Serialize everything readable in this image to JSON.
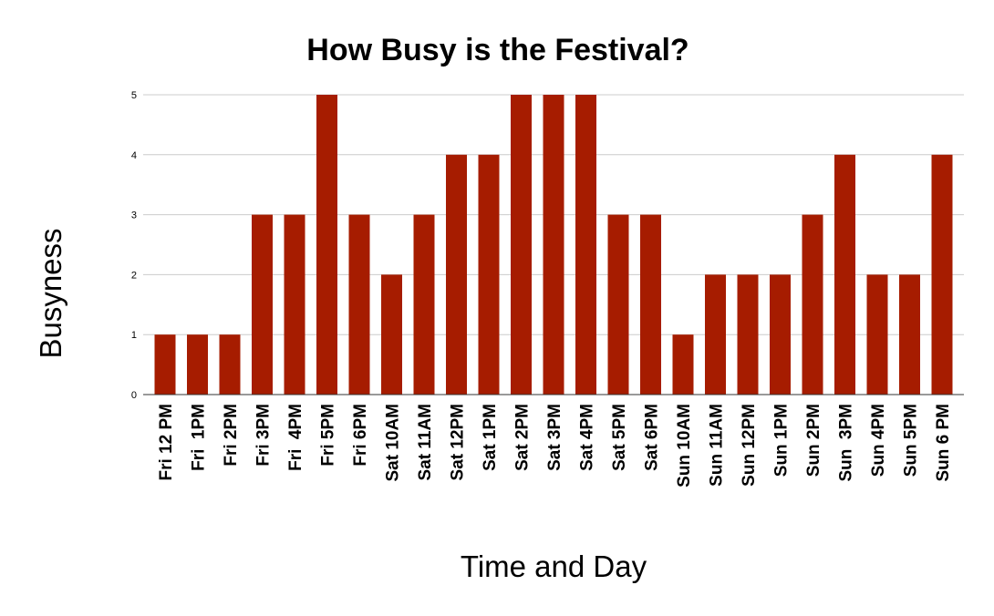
{
  "colors": {
    "bar": "#a61c00",
    "grid": "#cccccc",
    "baseline": "#333333",
    "background": "#ffffff"
  },
  "chart_data": {
    "type": "bar",
    "title": "How Busy is the Festival?",
    "xlabel": "Time and Day",
    "ylabel": "Busyness",
    "categories": [
      "Fri 12 PM",
      "Fri  1PM",
      "Fri 2PM",
      "Fri 3PM",
      "Fri  4PM",
      "Fri 5PM",
      "Fri 6PM",
      "Sat 10AM",
      "Sat 11AM",
      "Sat 12PM",
      "Sat 1PM",
      "Sat 2PM",
      "Sat 3PM",
      "Sat 4PM",
      "Sat 5PM",
      "Sat 6PM",
      "Sun 10AM",
      "Sun 11AM",
      "Sun 12PM",
      "Sun 1PM",
      "Sun 2PM",
      "Sun  3PM",
      "Sun 4PM",
      "Sun 5PM",
      "Sun 6 PM"
    ],
    "values": [
      1,
      1,
      1,
      3,
      3,
      5,
      3,
      2,
      3,
      4,
      4,
      5,
      5,
      5,
      3,
      3,
      1,
      2,
      2,
      2,
      3,
      4,
      2,
      2,
      4
    ],
    "ylim": [
      0,
      5
    ],
    "yticks": [
      "0",
      "1",
      "2",
      "3",
      "4",
      "5"
    ],
    "grid": true,
    "legend": "none"
  }
}
